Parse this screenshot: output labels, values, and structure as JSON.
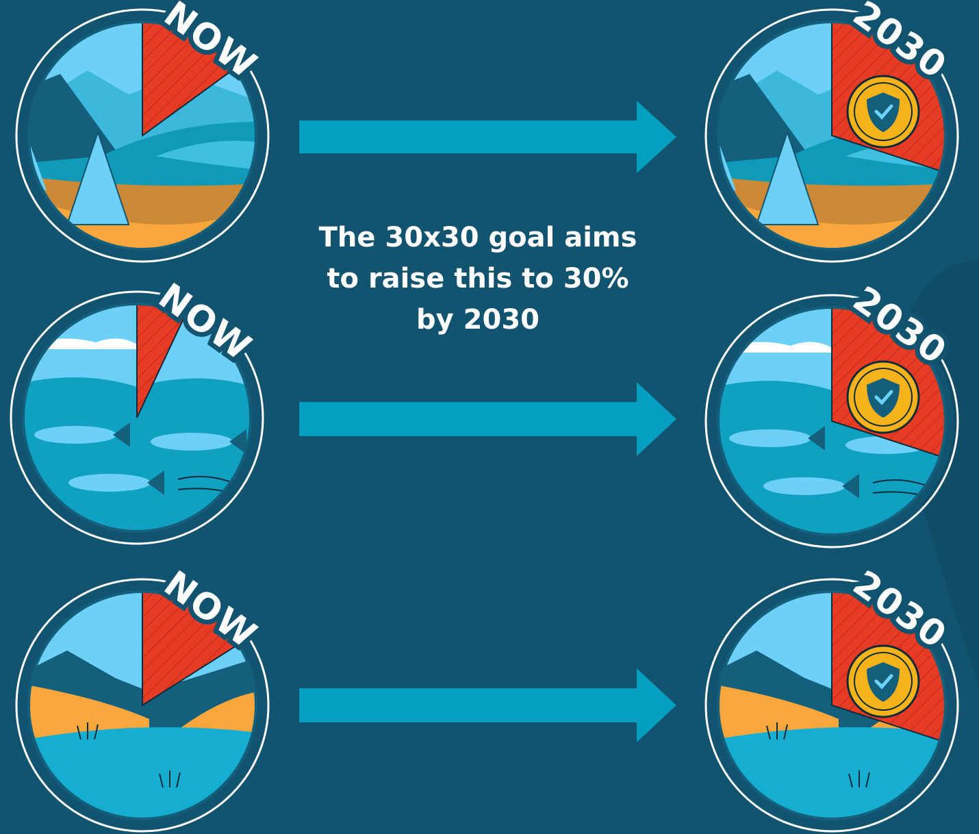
{
  "rows": [
    {
      "now_label": "NOW",
      "future_label": "2030"
    },
    {
      "now_label": "NOW",
      "future_label": "2030"
    },
    {
      "now_label": "NOW",
      "future_label": "2030"
    }
  ],
  "center_text": {
    "lines": [
      "The 30x30 goal aims",
      "to raise this to 30%",
      "by 2030"
    ]
  }
}
